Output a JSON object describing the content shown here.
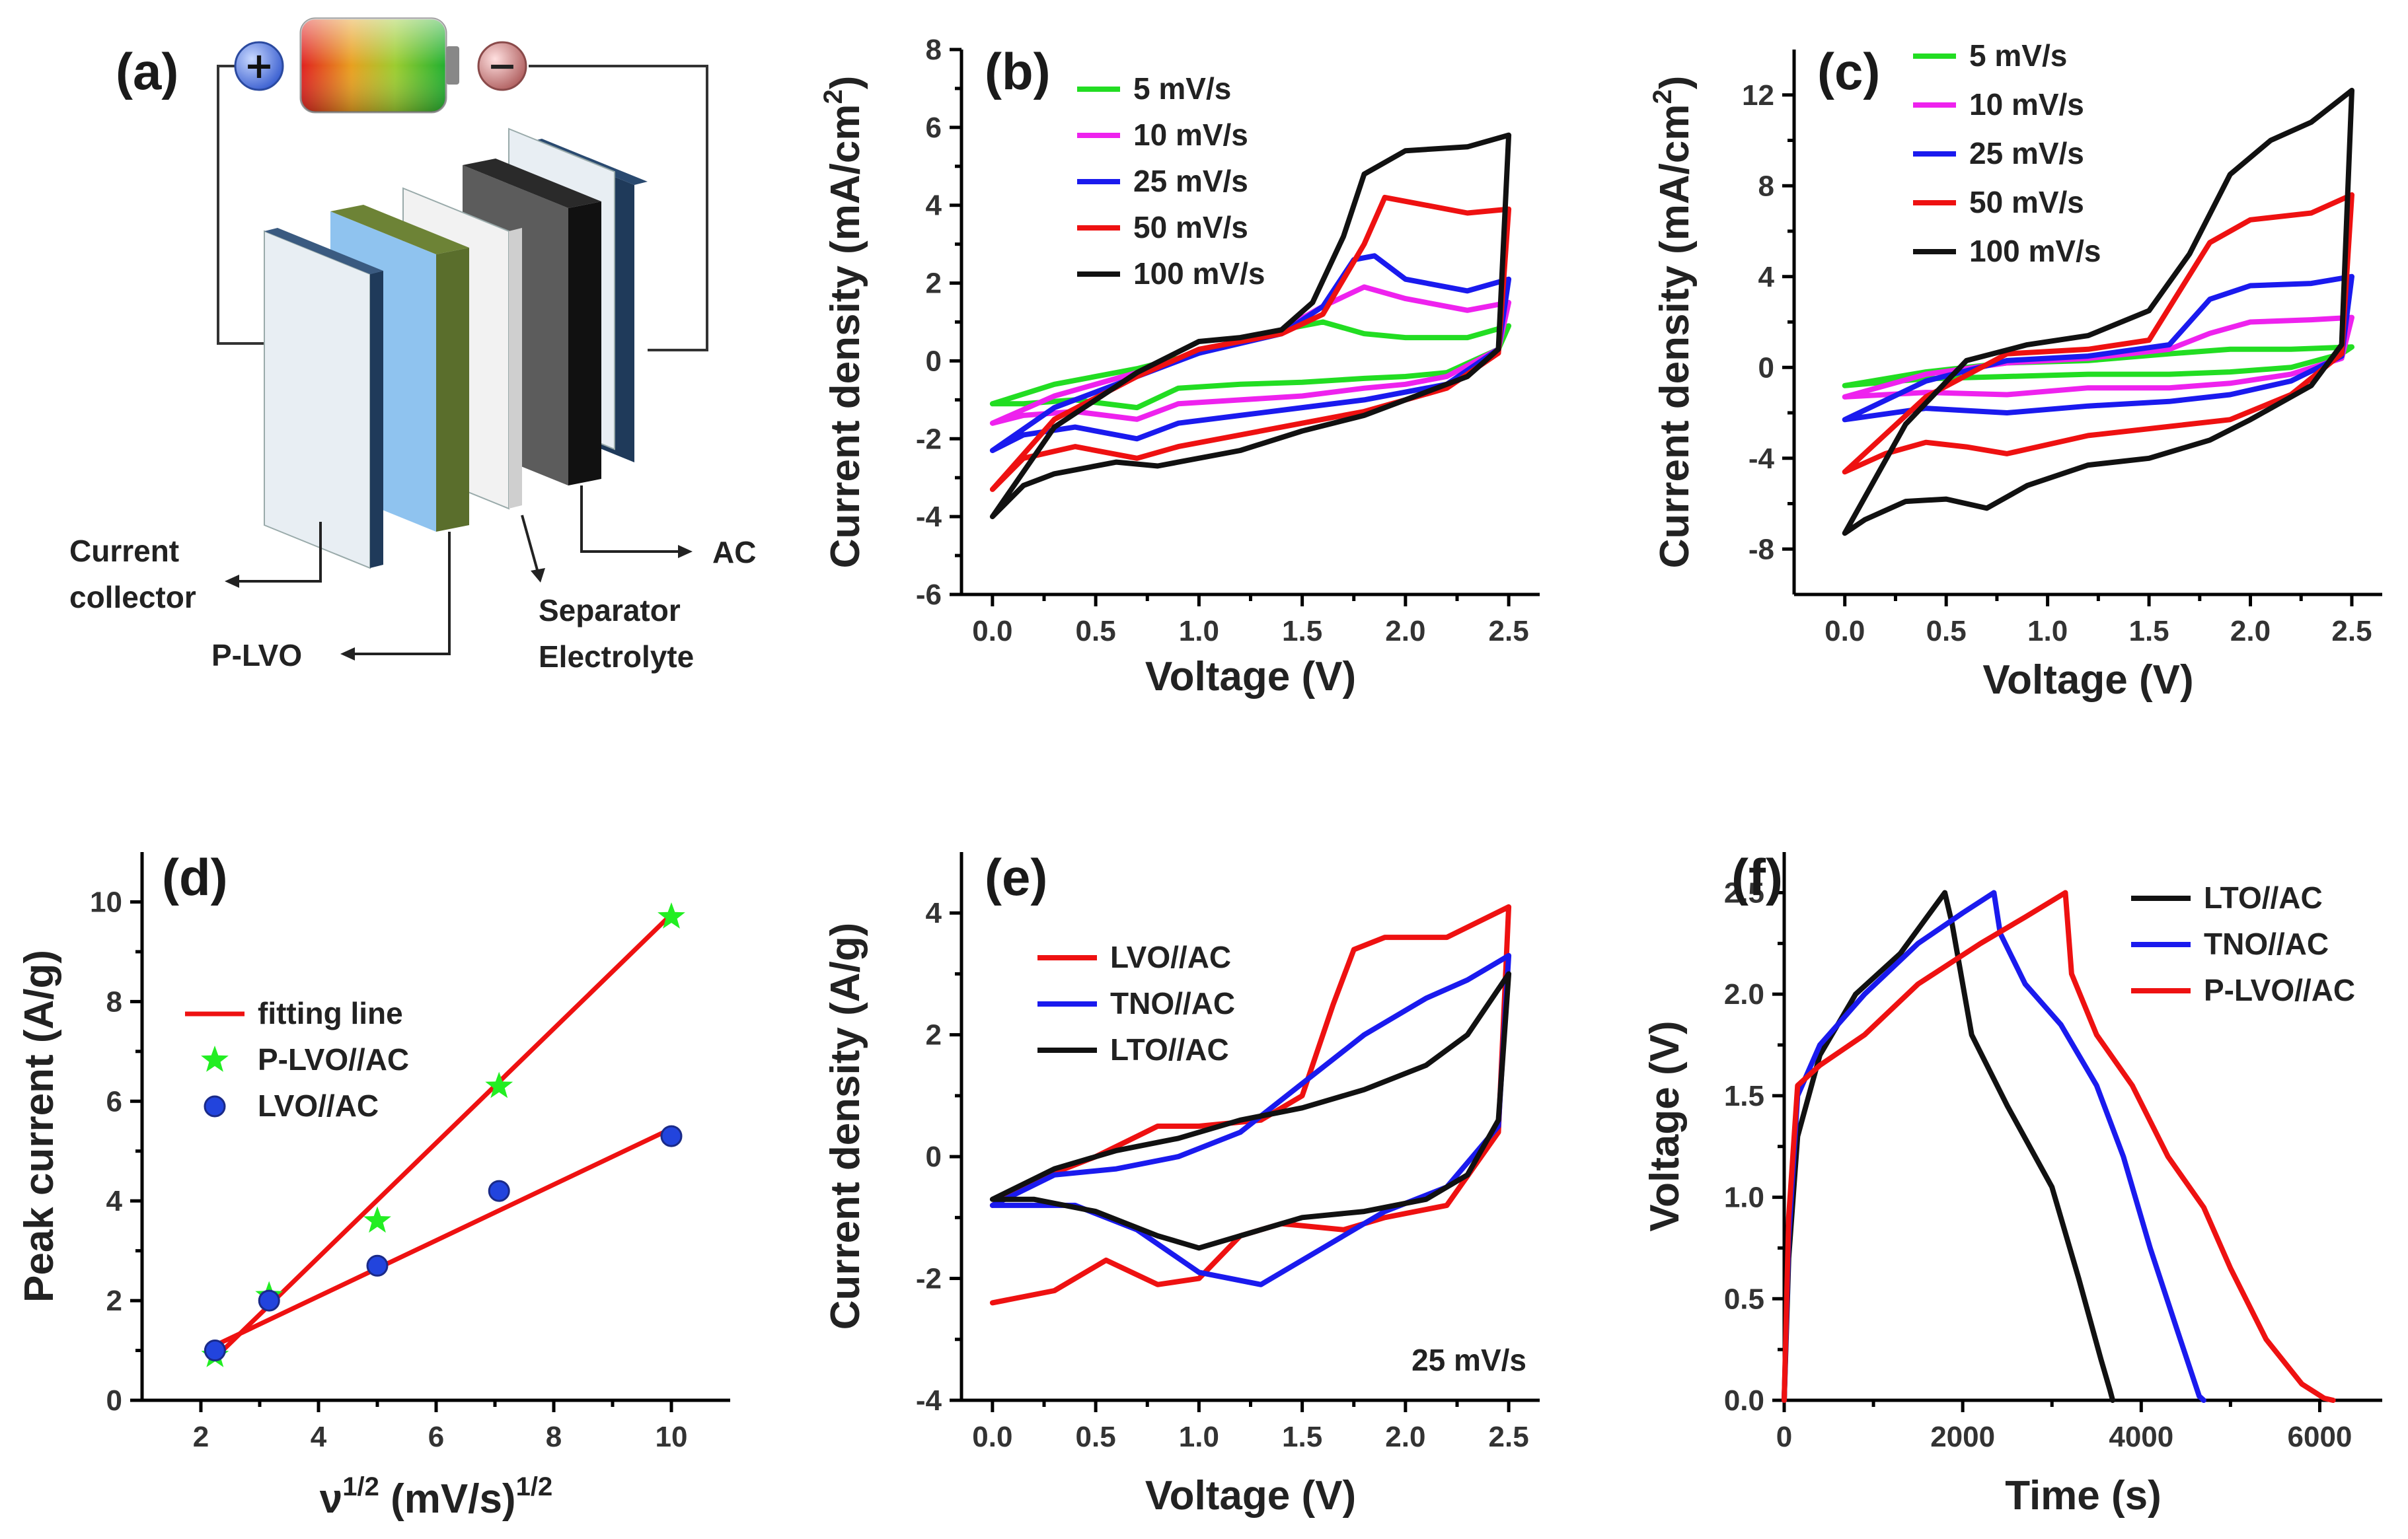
{
  "diagram": {
    "panel_label": "(a)",
    "labels": {
      "current_collector_1": "Current",
      "current_collector_2": "collector",
      "plvo": "P-LVO",
      "separator": "Separator",
      "electrolyte": "Electrolyte",
      "ac": "AC"
    },
    "plus_symbol": "+",
    "minus_symbol": "−",
    "colors": {
      "collector": "#e8eef3",
      "plvo_face": "#8fc3ef",
      "plvo_edge": "#5a6e2c",
      "separator": "#f2f2f2",
      "ac_face": "#5c5c5c",
      "ac_edge": "#111111"
    }
  },
  "chart_data": [
    {
      "id": "b",
      "panel_label": "(b)",
      "type": "line",
      "xlabel": "Voltage (V)",
      "ylabel": "Current density (mA/cm",
      "ylabel_sup": "2",
      "ylabel_close": ")",
      "xlim": [
        -0.15,
        2.65
      ],
      "ylim": [
        -6,
        8
      ],
      "xticks": [
        0.0,
        0.5,
        1.0,
        1.5,
        2.0,
        2.5
      ],
      "xtick_labels": [
        "0.0",
        "0.5",
        "1.0",
        "1.5",
        "2.0",
        "2.5"
      ],
      "yticks": [
        -6,
        -4,
        -2,
        0,
        2,
        4,
        6,
        8
      ],
      "ytick_labels": [
        "-6",
        "-4",
        "-2",
        "0",
        "2",
        "4",
        "6",
        "8"
      ],
      "legend_position": "top-left",
      "series": [
        {
          "name": "5 mV/s",
          "color": "#22dd22",
          "x": [
            0.0,
            0.3,
            0.7,
            1.0,
            1.4,
            1.6,
            1.8,
            2.0,
            2.3,
            2.5,
            2.45,
            2.2,
            2.0,
            1.8,
            1.5,
            1.2,
            0.9,
            0.7,
            0.4,
            0.15,
            0.0
          ],
          "y": [
            -1.1,
            -0.6,
            -0.2,
            0.2,
            0.8,
            1.0,
            0.7,
            0.6,
            0.6,
            0.9,
            0.3,
            -0.3,
            -0.4,
            -0.45,
            -0.55,
            -0.6,
            -0.7,
            -1.2,
            -1.0,
            -1.1,
            -1.1
          ]
        },
        {
          "name": "10 mV/s",
          "color": "#ee22ee",
          "x": [
            0.0,
            0.3,
            0.7,
            1.0,
            1.4,
            1.6,
            1.8,
            2.0,
            2.3,
            2.5,
            2.45,
            2.2,
            2.0,
            1.8,
            1.5,
            1.2,
            0.9,
            0.7,
            0.4,
            0.15,
            0.0
          ],
          "y": [
            -1.6,
            -0.9,
            -0.3,
            0.2,
            0.8,
            1.4,
            1.9,
            1.6,
            1.3,
            1.5,
            0.3,
            -0.4,
            -0.6,
            -0.7,
            -0.9,
            -1.0,
            -1.1,
            -1.5,
            -1.3,
            -1.4,
            -1.6
          ]
        },
        {
          "name": "25 mV/s",
          "color": "#1a1aee",
          "x": [
            0.0,
            0.3,
            0.7,
            1.0,
            1.4,
            1.6,
            1.75,
            1.85,
            2.0,
            2.3,
            2.5,
            2.45,
            2.2,
            2.0,
            1.8,
            1.5,
            1.2,
            0.9,
            0.7,
            0.4,
            0.15,
            0.0
          ],
          "y": [
            -2.3,
            -1.2,
            -0.4,
            0.2,
            0.7,
            1.4,
            2.6,
            2.7,
            2.1,
            1.8,
            2.1,
            0.3,
            -0.6,
            -0.8,
            -1.0,
            -1.2,
            -1.4,
            -1.6,
            -2.0,
            -1.7,
            -1.9,
            -2.3
          ]
        },
        {
          "name": "50 mV/s",
          "color": "#ee1111",
          "x": [
            0.0,
            0.3,
            0.7,
            1.0,
            1.4,
            1.6,
            1.8,
            1.9,
            2.0,
            2.3,
            2.5,
            2.45,
            2.2,
            2.0,
            1.8,
            1.5,
            1.2,
            0.9,
            0.7,
            0.4,
            0.15,
            0.0
          ],
          "y": [
            -3.3,
            -1.5,
            -0.4,
            0.3,
            0.7,
            1.2,
            3.0,
            4.2,
            4.1,
            3.8,
            3.9,
            0.2,
            -0.7,
            -1.0,
            -1.3,
            -1.6,
            -1.9,
            -2.2,
            -2.5,
            -2.2,
            -2.5,
            -3.3
          ]
        },
        {
          "name": "100 mV/s",
          "color": "#111111",
          "x": [
            0.0,
            0.3,
            0.7,
            1.0,
            1.2,
            1.4,
            1.55,
            1.7,
            1.8,
            2.0,
            2.3,
            2.5,
            2.45,
            2.3,
            2.0,
            1.8,
            1.5,
            1.2,
            0.9,
            0.8,
            0.6,
            0.3,
            0.15,
            0.0
          ],
          "y": [
            -4.0,
            -1.7,
            -0.3,
            0.5,
            0.6,
            0.8,
            1.5,
            3.2,
            4.8,
            5.4,
            5.5,
            5.8,
            0.3,
            -0.4,
            -1.0,
            -1.4,
            -1.8,
            -2.3,
            -2.6,
            -2.7,
            -2.6,
            -2.9,
            -3.2,
            -4.0
          ]
        }
      ]
    },
    {
      "id": "c",
      "panel_label": "(c)",
      "type": "line",
      "xlabel": "Voltage (V)",
      "ylabel": "Current density (mA/cm",
      "ylabel_sup": "2",
      "ylabel_close": ")",
      "xlim": [
        -0.25,
        2.65
      ],
      "ylim": [
        -10,
        14
      ],
      "xticks": [
        0.0,
        0.5,
        1.0,
        1.5,
        2.0,
        2.5
      ],
      "xtick_labels": [
        "0.0",
        "0.5",
        "1.0",
        "1.5",
        "2.0",
        "2.5"
      ],
      "yticks": [
        -8,
        -4,
        0,
        4,
        8,
        12
      ],
      "ytick_labels": [
        "-8",
        "-4",
        "0",
        "4",
        "8",
        "12"
      ],
      "legend_position": "top-left",
      "series": [
        {
          "name": "5 mV/s",
          "color": "#22dd22",
          "x": [
            0.0,
            0.4,
            0.8,
            1.2,
            1.6,
            1.9,
            2.2,
            2.5,
            2.45,
            2.2,
            1.9,
            1.6,
            1.2,
            0.8,
            0.4,
            0.0
          ],
          "y": [
            -0.8,
            -0.2,
            0.2,
            0.3,
            0.6,
            0.8,
            0.8,
            0.9,
            0.6,
            0.0,
            -0.2,
            -0.3,
            -0.3,
            -0.4,
            -0.5,
            -0.8
          ]
        },
        {
          "name": "10 mV/s",
          "color": "#ee22ee",
          "x": [
            0.0,
            0.4,
            0.8,
            1.2,
            1.6,
            1.8,
            2.0,
            2.3,
            2.5,
            2.45,
            2.2,
            1.9,
            1.6,
            1.2,
            0.8,
            0.4,
            0.0
          ],
          "y": [
            -1.3,
            -0.3,
            0.2,
            0.4,
            0.8,
            1.5,
            2.0,
            2.1,
            2.2,
            0.4,
            -0.3,
            -0.7,
            -0.9,
            -0.9,
            -1.2,
            -1.1,
            -1.3
          ]
        },
        {
          "name": "25 mV/s",
          "color": "#1a1aee",
          "x": [
            0.0,
            0.4,
            0.8,
            1.2,
            1.6,
            1.8,
            2.0,
            2.3,
            2.5,
            2.45,
            2.2,
            1.9,
            1.6,
            1.2,
            0.8,
            0.6,
            0.4,
            0.0
          ],
          "y": [
            -2.3,
            -0.6,
            0.3,
            0.5,
            1.0,
            3.0,
            3.6,
            3.7,
            4.0,
            0.5,
            -0.6,
            -1.2,
            -1.5,
            -1.7,
            -2.0,
            -1.9,
            -1.8,
            -2.3
          ]
        },
        {
          "name": "50 mV/s",
          "color": "#ee1111",
          "x": [
            0.0,
            0.4,
            0.8,
            1.2,
            1.5,
            1.8,
            2.0,
            2.3,
            2.5,
            2.45,
            2.2,
            1.9,
            1.6,
            1.2,
            0.8,
            0.6,
            0.4,
            0.2,
            0.0
          ],
          "y": [
            -4.6,
            -1.3,
            0.6,
            0.8,
            1.2,
            5.5,
            6.5,
            6.8,
            7.6,
            0.6,
            -1.2,
            -2.3,
            -2.6,
            -3.0,
            -3.8,
            -3.5,
            -3.3,
            -3.8,
            -4.6
          ]
        },
        {
          "name": "100 mV/s",
          "color": "#111111",
          "x": [
            0.0,
            0.3,
            0.6,
            0.9,
            1.2,
            1.5,
            1.7,
            1.9,
            2.1,
            2.3,
            2.5,
            2.45,
            2.3,
            2.0,
            1.8,
            1.5,
            1.2,
            0.9,
            0.7,
            0.5,
            0.3,
            0.1,
            0.0
          ],
          "y": [
            -7.3,
            -2.5,
            0.3,
            1.0,
            1.4,
            2.5,
            5.0,
            8.5,
            10.0,
            10.8,
            12.2,
            1.0,
            -0.8,
            -2.3,
            -3.2,
            -4.0,
            -4.3,
            -5.2,
            -6.2,
            -5.8,
            -5.9,
            -6.7,
            -7.3
          ]
        }
      ]
    },
    {
      "id": "d",
      "panel_label": "(d)",
      "type": "scatter",
      "xlabel": "ν",
      "xlabel_sup": "1/2",
      "xlabel_mid": " (mV/s)",
      "xlabel_sup2": "1/2",
      "ylabel": "Peak current (A/g)",
      "xlim": [
        1,
        11
      ],
      "ylim": [
        0,
        11
      ],
      "xticks": [
        2,
        4,
        6,
        8,
        10
      ],
      "xtick_labels": [
        "2",
        "4",
        "6",
        "8",
        "10"
      ],
      "yticks": [
        0,
        2,
        4,
        6,
        8,
        10
      ],
      "ytick_labels": [
        "0",
        "2",
        "4",
        "6",
        "8",
        "10"
      ],
      "legend_position": "center-left",
      "fit_line": {
        "name": "fitting line",
        "color": "#ee1111"
      },
      "series": [
        {
          "name": "P-LVO//AC",
          "color": "#22ee22",
          "marker": "star",
          "x": [
            2.24,
            3.16,
            5.0,
            7.07,
            10.0
          ],
          "y": [
            0.9,
            2.1,
            3.6,
            6.3,
            9.7
          ],
          "fit": {
            "x": [
              2.24,
              10.0
            ],
            "y": [
              0.85,
              9.75
            ]
          }
        },
        {
          "name": "LVO//AC",
          "color": "#2244dd",
          "marker": "circle",
          "x": [
            2.24,
            3.16,
            5.0,
            7.07,
            10.0
          ],
          "y": [
            1.0,
            2.0,
            2.7,
            4.2,
            5.3
          ],
          "fit": {
            "x": [
              2.24,
              10.0
            ],
            "y": [
              1.1,
              5.45
            ]
          }
        }
      ]
    },
    {
      "id": "e",
      "panel_label": "(e)",
      "type": "line",
      "xlabel": "Voltage (V)",
      "ylabel": "Current density (A/g)",
      "annotation": "25 mV/s",
      "xlim": [
        -0.15,
        2.65
      ],
      "ylim": [
        -4,
        5
      ],
      "xticks": [
        0.0,
        0.5,
        1.0,
        1.5,
        2.0,
        2.5
      ],
      "xtick_labels": [
        "0.0",
        "0.5",
        "1.0",
        "1.5",
        "2.0",
        "2.5"
      ],
      "yticks": [
        -4,
        -2,
        0,
        2,
        4
      ],
      "ytick_labels": [
        "-4",
        "-2",
        "0",
        "2",
        "4"
      ],
      "legend_position": "top-left",
      "series": [
        {
          "name": "LVO//AC",
          "color": "#ee1111",
          "x": [
            0.0,
            0.2,
            0.5,
            0.8,
            1.0,
            1.3,
            1.5,
            1.65,
            1.75,
            1.9,
            2.2,
            2.5,
            2.45,
            2.2,
            1.9,
            1.7,
            1.4,
            1.2,
            1.0,
            0.8,
            0.55,
            0.3,
            0.0
          ],
          "y": [
            -0.8,
            -0.4,
            0.0,
            0.5,
            0.5,
            0.6,
            1.0,
            2.5,
            3.4,
            3.6,
            3.6,
            4.1,
            0.4,
            -0.8,
            -1.0,
            -1.2,
            -1.1,
            -1.3,
            -2.0,
            -2.1,
            -1.7,
            -2.2,
            -2.4
          ]
        },
        {
          "name": "TNO//AC",
          "color": "#1a1aee",
          "x": [
            0.0,
            0.3,
            0.6,
            0.9,
            1.2,
            1.5,
            1.8,
            2.1,
            2.3,
            2.5,
            2.45,
            2.2,
            1.9,
            1.6,
            1.3,
            1.0,
            0.7,
            0.4,
            0.1,
            0.0
          ],
          "y": [
            -0.8,
            -0.3,
            -0.2,
            0.0,
            0.4,
            1.2,
            2.0,
            2.6,
            2.9,
            3.3,
            0.5,
            -0.5,
            -0.9,
            -1.5,
            -2.1,
            -1.9,
            -1.2,
            -0.8,
            -0.8,
            -0.8
          ]
        },
        {
          "name": "LTO//AC",
          "color": "#111111",
          "x": [
            0.0,
            0.3,
            0.6,
            0.9,
            1.2,
            1.5,
            1.8,
            2.1,
            2.3,
            2.5,
            2.45,
            2.3,
            2.1,
            1.8,
            1.5,
            1.2,
            1.0,
            0.8,
            0.5,
            0.2,
            0.0
          ],
          "y": [
            -0.7,
            -0.2,
            0.1,
            0.3,
            0.6,
            0.8,
            1.1,
            1.5,
            2.0,
            3.0,
            0.6,
            -0.3,
            -0.7,
            -0.9,
            -1.0,
            -1.3,
            -1.5,
            -1.3,
            -0.9,
            -0.7,
            -0.7
          ]
        }
      ]
    },
    {
      "id": "f",
      "panel_label": "(f)",
      "type": "line",
      "xlabel": "Time (s)",
      "ylabel": "Voltage (V)",
      "xlim": [
        0,
        6700
      ],
      "ylim": [
        0,
        2.7
      ],
      "xticks": [
        0,
        2000,
        4000,
        6000
      ],
      "xtick_labels": [
        "0",
        "2000",
        "4000",
        "6000"
      ],
      "yticks": [
        0.0,
        0.5,
        1.0,
        1.5,
        2.0,
        2.5
      ],
      "ytick_labels": [
        "0.0",
        "0.5",
        "1.0",
        "1.5",
        "2.0",
        "2.5"
      ],
      "legend_position": "top-right",
      "series": [
        {
          "name": "LTO//AC",
          "color": "#111111",
          "x": [
            0,
            50,
            150,
            400,
            800,
            1300,
            1800,
            1880,
            2100,
            2500,
            3000,
            3300,
            3550,
            3650,
            3680
          ],
          "y": [
            0.0,
            0.7,
            1.3,
            1.7,
            2.0,
            2.2,
            2.5,
            2.35,
            1.8,
            1.45,
            1.05,
            0.6,
            0.2,
            0.05,
            0.0
          ]
        },
        {
          "name": "TNO//AC",
          "color": "#1a1aee",
          "x": [
            0,
            50,
            150,
            400,
            900,
            1500,
            2000,
            2350,
            2420,
            2700,
            3100,
            3500,
            3800,
            4100,
            4400,
            4650,
            4700
          ],
          "y": [
            0.0,
            0.8,
            1.5,
            1.75,
            2.0,
            2.25,
            2.4,
            2.5,
            2.3,
            2.05,
            1.85,
            1.55,
            1.2,
            0.75,
            0.35,
            0.02,
            0.0
          ]
        },
        {
          "name": "P-LVO//AC",
          "color": "#ee1111",
          "x": [
            0,
            50,
            150,
            400,
            900,
            1500,
            2200,
            2700,
            3150,
            3220,
            3500,
            3900,
            4300,
            4700,
            5000,
            5400,
            5800,
            6050,
            6150
          ],
          "y": [
            0.0,
            0.9,
            1.55,
            1.65,
            1.8,
            2.05,
            2.25,
            2.38,
            2.5,
            2.1,
            1.8,
            1.55,
            1.2,
            0.95,
            0.65,
            0.3,
            0.08,
            0.01,
            0.0
          ]
        }
      ]
    }
  ]
}
